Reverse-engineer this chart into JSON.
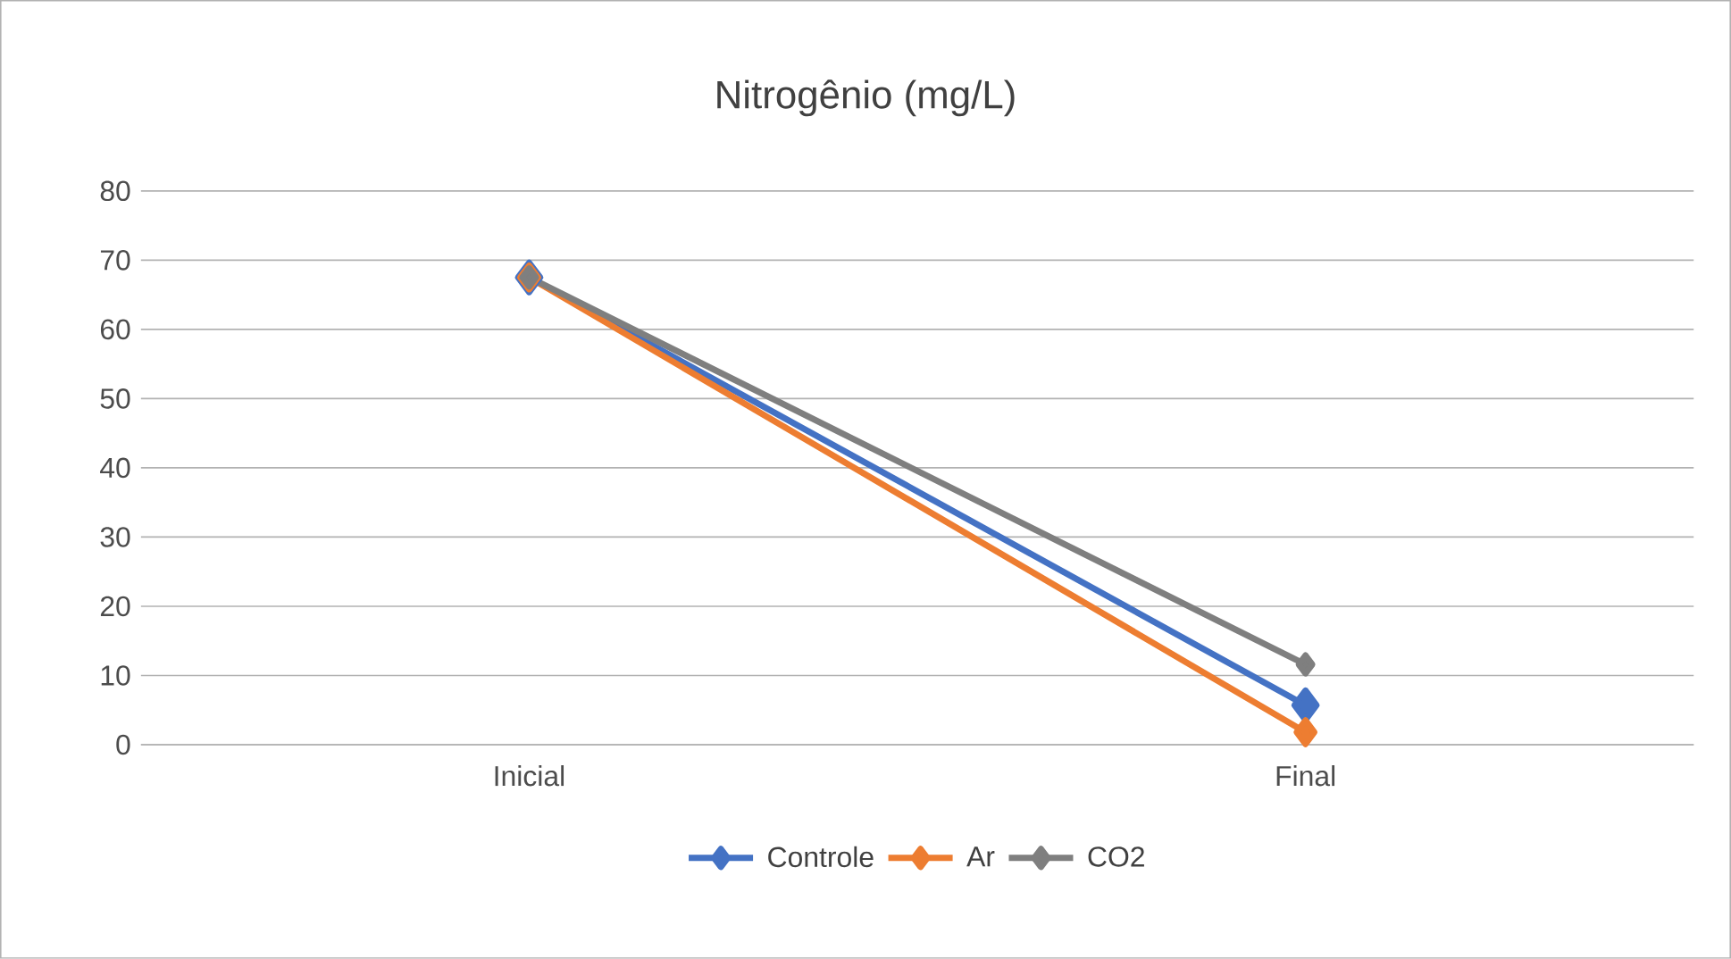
{
  "chart_data": {
    "type": "line",
    "title": "Nitrogênio (mg/L)",
    "categories": [
      "Inicial",
      "Final"
    ],
    "series": [
      {
        "name": "Controle",
        "color": "#4472c4",
        "values": [
          67.5,
          5.7
        ]
      },
      {
        "name": "Ar",
        "color": "#ed7d31",
        "values": [
          67.5,
          1.8
        ]
      },
      {
        "name": "CO2",
        "color": "#7f7f7f",
        "values": [
          67.5,
          11.6
        ]
      }
    ],
    "ylim": [
      0,
      80
    ],
    "yticks": [
      0,
      10,
      20,
      30,
      40,
      50,
      60,
      70,
      80
    ],
    "grid": "y",
    "legend": "bottom",
    "marker": "diamond",
    "line_style": "solid"
  }
}
